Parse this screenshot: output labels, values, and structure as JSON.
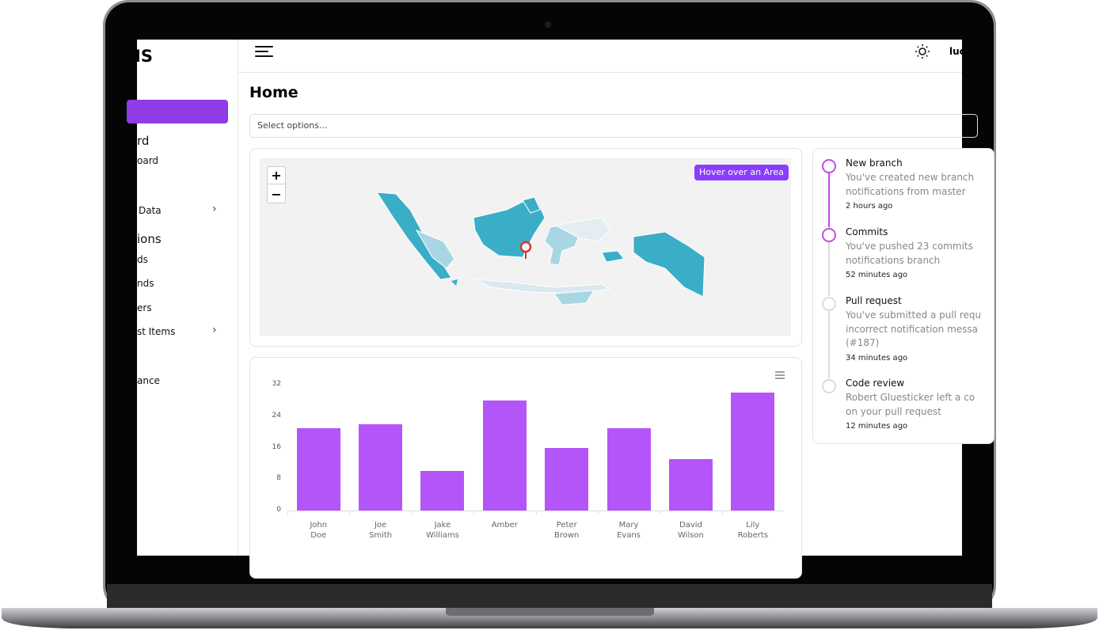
{
  "sidebar": {
    "brand": "IS",
    "items": [
      "rd",
      "oard",
      "Data",
      "ions",
      "ds",
      "nds",
      "ers",
      "st Items",
      "ance"
    ]
  },
  "header": {
    "user": "luc"
  },
  "page": {
    "title": "Home",
    "select_placeholder": "Select options..."
  },
  "map": {
    "badge": "Hover over an Area",
    "zoom_in": "+",
    "zoom_out": "−"
  },
  "timeline": [
    {
      "title": "New branch",
      "lines": [
        "You've created new branch",
        "notifications from master"
      ],
      "time": "2 hours ago"
    },
    {
      "title": "Commits",
      "lines": [
        "You've pushed 23 commits",
        "notifications branch"
      ],
      "time": "52 minutes ago"
    },
    {
      "title": "Pull request",
      "lines": [
        "You've submitted a pull requ",
        "incorrect notification messa",
        "(#187)"
      ],
      "time": "34 minutes ago"
    },
    {
      "title": "Code review",
      "lines": [
        "Robert Gluesticker left a co",
        "on your pull request"
      ],
      "time": "12 minutes ago"
    }
  ],
  "chart_data": {
    "type": "bar",
    "categories": [
      "John Doe",
      "Joe Smith",
      "Jake Williams",
      "Amber",
      "Peter Brown",
      "Mary Evans",
      "David Wilson",
      "Lily Roberts"
    ],
    "values": [
      21,
      22,
      10,
      28,
      16,
      21,
      13,
      30
    ],
    "color": "#b455f9",
    "ylim": [
      0,
      32
    ],
    "yticks": [
      0,
      8,
      16,
      24,
      32
    ]
  }
}
